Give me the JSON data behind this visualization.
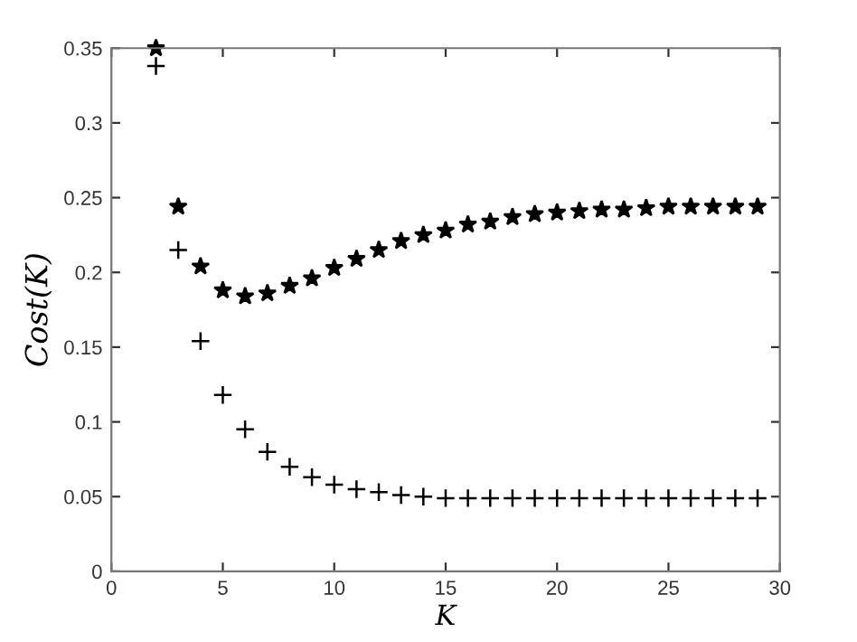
{
  "chart_data": {
    "type": "scatter",
    "xlabel": "K",
    "ylabel": "Cost(K)",
    "x": [
      2,
      3,
      4,
      5,
      6,
      7,
      8,
      9,
      10,
      11,
      12,
      13,
      14,
      15,
      16,
      17,
      18,
      19,
      20,
      21,
      22,
      23,
      24,
      25,
      26,
      27,
      28,
      29
    ],
    "series": [
      {
        "color": "#000000",
        "marker": "star",
        "values": [
          0.35,
          0.244,
          0.204,
          0.188,
          0.184,
          0.186,
          0.191,
          0.196,
          0.203,
          0.209,
          0.215,
          0.221,
          0.225,
          0.228,
          0.232,
          0.234,
          0.237,
          0.239,
          0.24,
          0.241,
          0.242,
          0.242,
          0.243,
          0.244,
          0.244,
          0.244,
          0.244,
          0.244
        ]
      },
      {
        "color": "#000000",
        "marker": "cross",
        "values": [
          0.338,
          0.215,
          0.154,
          0.118,
          0.095,
          0.08,
          0.07,
          0.063,
          0.058,
          0.055,
          0.053,
          0.051,
          0.05,
          0.049,
          0.049,
          0.049,
          0.049,
          0.049,
          0.049,
          0.049,
          0.049,
          0.049,
          0.049,
          0.049,
          0.049,
          0.049,
          0.049,
          0.049
        ]
      }
    ],
    "xlim": [
      0,
      30
    ],
    "xticks": [
      0,
      5,
      10,
      15,
      20,
      25,
      30
    ],
    "ylim": [
      0,
      0.35
    ],
    "yticks": [
      0,
      0.05,
      0.1,
      0.15,
      0.2,
      0.25,
      0.3,
      0.35
    ],
    "grid": false,
    "legend": false
  }
}
